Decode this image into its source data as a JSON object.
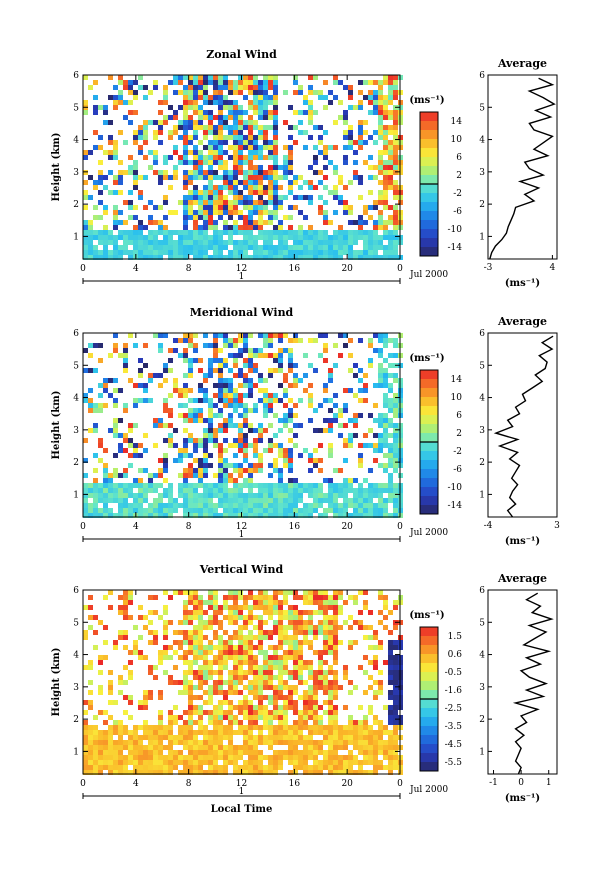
{
  "figure": {
    "date_label": "Jul 2000",
    "xlabel": "Local Time",
    "ylabel": "Height (km)"
  },
  "chart_data": [
    {
      "type": "heatmap",
      "title": "Zonal Wind",
      "xlabel": "",
      "ylabel": "Height (km)",
      "xlim": [
        0,
        24
      ],
      "ylim": [
        0.3,
        6
      ],
      "xticks": [
        "0",
        "4",
        "8",
        "12",
        "16",
        "20",
        "0"
      ],
      "yticks": [
        "1",
        "2",
        "3",
        "4",
        "5",
        "6"
      ],
      "day_label": "1",
      "date_label": "Jul 2000",
      "colorbar": {
        "unit": "(ms⁻¹)",
        "ticks": [
          "14",
          "10",
          "6",
          "2",
          "-2",
          "-6",
          "-10",
          "-14"
        ],
        "range": [
          -16,
          16
        ]
      },
      "average_profile": {
        "title": "Average",
        "xlabel": "(ms⁻¹)",
        "xticks": [
          "-3",
          "4"
        ],
        "xlim": [
          -3,
          4.5
        ],
        "yticks": [
          "1",
          "2",
          "3",
          "4",
          "5",
          "6"
        ],
        "height": [
          0.3,
          0.5,
          0.7,
          0.9,
          1.1,
          1.3,
          1.5,
          1.7,
          1.9,
          2.1,
          2.3,
          2.5,
          2.7,
          2.9,
          3.1,
          3.3,
          3.5,
          3.7,
          3.9,
          4.1,
          4.3,
          4.5,
          4.7,
          4.9,
          5.1,
          5.3,
          5.5,
          5.7,
          5.9
        ],
        "value": [
          -2.8,
          -2.6,
          -2.2,
          -1.5,
          -1.0,
          -0.8,
          -0.5,
          -0.2,
          0.0,
          2.0,
          1.0,
          2.5,
          0.5,
          3.0,
          1.5,
          1.0,
          3.5,
          2.0,
          3.0,
          4.0,
          2.0,
          1.5,
          3.8,
          2.2,
          4.2,
          3.0,
          1.5,
          4.0,
          2.5
        ]
      }
    },
    {
      "type": "heatmap",
      "title": "Meridional Wind",
      "xlabel": "",
      "ylabel": "Height (km)",
      "xlim": [
        0,
        24
      ],
      "ylim": [
        0.3,
        6
      ],
      "xticks": [
        "0",
        "4",
        "8",
        "12",
        "16",
        "20",
        "0"
      ],
      "yticks": [
        "1",
        "2",
        "3",
        "4",
        "5",
        "6"
      ],
      "day_label": "1",
      "date_label": "Jul 2000",
      "colorbar": {
        "unit": "(ms⁻¹)",
        "ticks": [
          "14",
          "10",
          "6",
          "2",
          "-2",
          "-6",
          "-10",
          "-14"
        ],
        "range": [
          -16,
          16
        ]
      },
      "average_profile": {
        "title": "Average",
        "xlabel": "(ms⁻¹)",
        "xticks": [
          "-4",
          "3"
        ],
        "xlim": [
          -4,
          3
        ],
        "yticks": [
          "1",
          "2",
          "3",
          "4",
          "5",
          "6"
        ],
        "height": [
          0.3,
          0.5,
          0.7,
          0.9,
          1.1,
          1.3,
          1.5,
          1.7,
          1.9,
          2.1,
          2.3,
          2.5,
          2.7,
          2.9,
          3.1,
          3.3,
          3.5,
          3.7,
          3.9,
          4.1,
          4.3,
          4.5,
          4.7,
          4.9,
          5.1,
          5.3,
          5.5,
          5.7,
          5.9
        ],
        "value": [
          -1.5,
          -2.0,
          -1.2,
          -1.8,
          -1.5,
          -1.0,
          -1.6,
          -1.2,
          -0.8,
          -1.8,
          -1.0,
          -2.8,
          -1.0,
          -3.2,
          -1.5,
          -2.0,
          -0.8,
          -1.2,
          -0.2,
          -0.5,
          0.5,
          1.5,
          0.8,
          1.8,
          2.0,
          1.2,
          2.5,
          1.5,
          2.6
        ]
      }
    },
    {
      "type": "heatmap",
      "title": "Vertical Wind",
      "xlabel": "Local Time",
      "ylabel": "Height (km)",
      "xlim": [
        0,
        24
      ],
      "ylim": [
        0.3,
        6
      ],
      "xticks": [
        "0",
        "4",
        "8",
        "12",
        "16",
        "20",
        "0"
      ],
      "yticks": [
        "1",
        "2",
        "3",
        "4",
        "5",
        "6"
      ],
      "day_label": "1",
      "date_label": "Jul 2000",
      "colorbar": {
        "unit": "(ms⁻¹)",
        "ticks": [
          "1.5",
          "0.6",
          "-0.5",
          "-1.6",
          "-2.5",
          "-3.5",
          "-4.5",
          "-5.5"
        ],
        "range": [
          -6.0,
          2.0
        ]
      },
      "average_profile": {
        "title": "Average",
        "xlabel": "(ms⁻¹)",
        "xticks": [
          "-1",
          "0",
          "1"
        ],
        "xlim": [
          -1.2,
          1.3
        ],
        "yticks": [
          "1",
          "2",
          "3",
          "4",
          "5",
          "6"
        ],
        "height": [
          0.3,
          0.5,
          0.7,
          0.9,
          1.1,
          1.3,
          1.5,
          1.7,
          1.9,
          2.1,
          2.3,
          2.5,
          2.7,
          2.9,
          3.1,
          3.3,
          3.5,
          3.7,
          3.9,
          4.1,
          4.3,
          4.5,
          4.7,
          4.9,
          5.1,
          5.3,
          5.5,
          5.7,
          5.9
        ],
        "value": [
          -0.1,
          0.0,
          -0.2,
          -0.1,
          0.0,
          -0.2,
          0.1,
          -0.2,
          0.2,
          0.0,
          0.6,
          -0.2,
          0.8,
          0.2,
          0.9,
          0.3,
          0.0,
          0.7,
          0.2,
          1.0,
          0.1,
          0.5,
          0.9,
          0.3,
          1.1,
          0.4,
          0.7,
          0.2,
          0.6
        ]
      }
    }
  ]
}
